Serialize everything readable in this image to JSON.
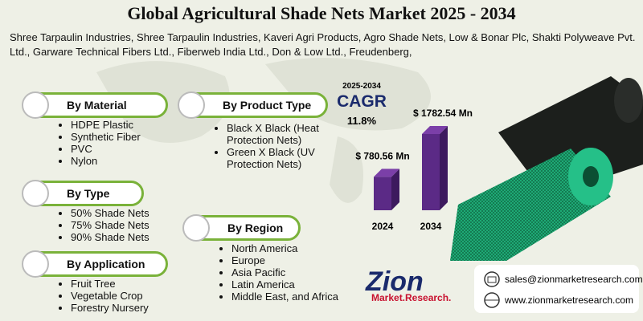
{
  "header": {
    "title": "Global Agricultural Shade Nets Market 2025 - 2034",
    "companies": "Shree Tarpaulin Industries, Shree Tarpaulin Industries, Kaveri Agri Products, Agro Shade Nets, Low & Bonar Plc, Shakti Polyweave Pvt. Ltd., Garware Technical Fibers Ltd., Fiberweb India Ltd., Don & Low Ltd., Freudenberg,"
  },
  "segments": [
    {
      "title": "By Material",
      "items": [
        "HDPE Plastic",
        "Synthetic Fiber",
        "PVC",
        "Nylon"
      ]
    },
    {
      "title": "By Type",
      "items": [
        "50% Shade Nets",
        "75% Shade Nets",
        "90% Shade Nets"
      ]
    },
    {
      "title": "By Application",
      "items": [
        "Fruit Tree",
        "Vegetable Crop",
        "Forestry Nursery"
      ]
    },
    {
      "title": "By Product Type",
      "items": [
        "Black X Black (Heat Protection Nets)",
        "Green X Black (UV Protection Nets)"
      ]
    },
    {
      "title": "By Region",
      "items": [
        "North America",
        "Europe",
        "Asia Pacific",
        "Latin America",
        "Middle East, and Africa"
      ]
    }
  ],
  "market": {
    "period": "2025-2034",
    "cagr_label": "CAGR",
    "cagr": "11.8%",
    "bars": [
      {
        "year": "2024",
        "value": 780.56,
        "value_label": "$ 780.56 Mn"
      },
      {
        "year": "2034",
        "value": 1782.54,
        "value_label": "$ 1782.54 Mn"
      }
    ]
  },
  "brand": {
    "name": "Zion",
    "sub": "Market.Research."
  },
  "contact": {
    "email": "sales@zionmarketresearch.com",
    "website": "www.zionmarketresearch.com"
  }
}
